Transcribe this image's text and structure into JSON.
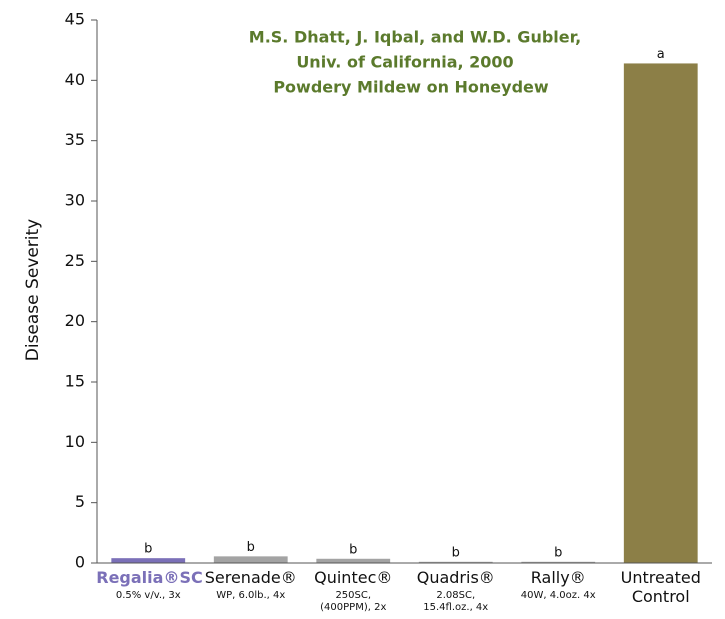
{
  "chart_data": {
    "type": "bar",
    "title_lines": [
      "M.S. Dhatt, J. Iqbal, and W.D. Gubler,",
      "Univ. of California, 2000",
      "Powdery Mildew on Honeydew"
    ],
    "y_label": "Disease Severity",
    "categories": [
      "Regalia®SC",
      "Serenade®",
      "Quintec®",
      "Quadris®",
      "Rally®",
      "Untreated Control"
    ],
    "sublabels": [
      "0.5% v/v., 3x",
      "WP, 6.0lb., 4x",
      "250SC, (400PPM), 2x",
      "2.08SC, 15.4fl.oz., 4x",
      "40W, 4.0oz. 4x",
      null
    ],
    "values": [
      0.4,
      0.55,
      0.35,
      0.1,
      0.1,
      41.4
    ],
    "letters": [
      "b",
      "b",
      "b",
      "b",
      "b",
      "a"
    ],
    "colors": [
      "#7b70b8",
      "#a3a3a3",
      "#a3a3a3",
      "#a3a3a3",
      "#a3a3a3",
      "#8c7f47"
    ],
    "ylim": [
      0,
      45
    ],
    "yticks": [
      0,
      5,
      10,
      15,
      20,
      25,
      30,
      35,
      40,
      45
    ]
  }
}
